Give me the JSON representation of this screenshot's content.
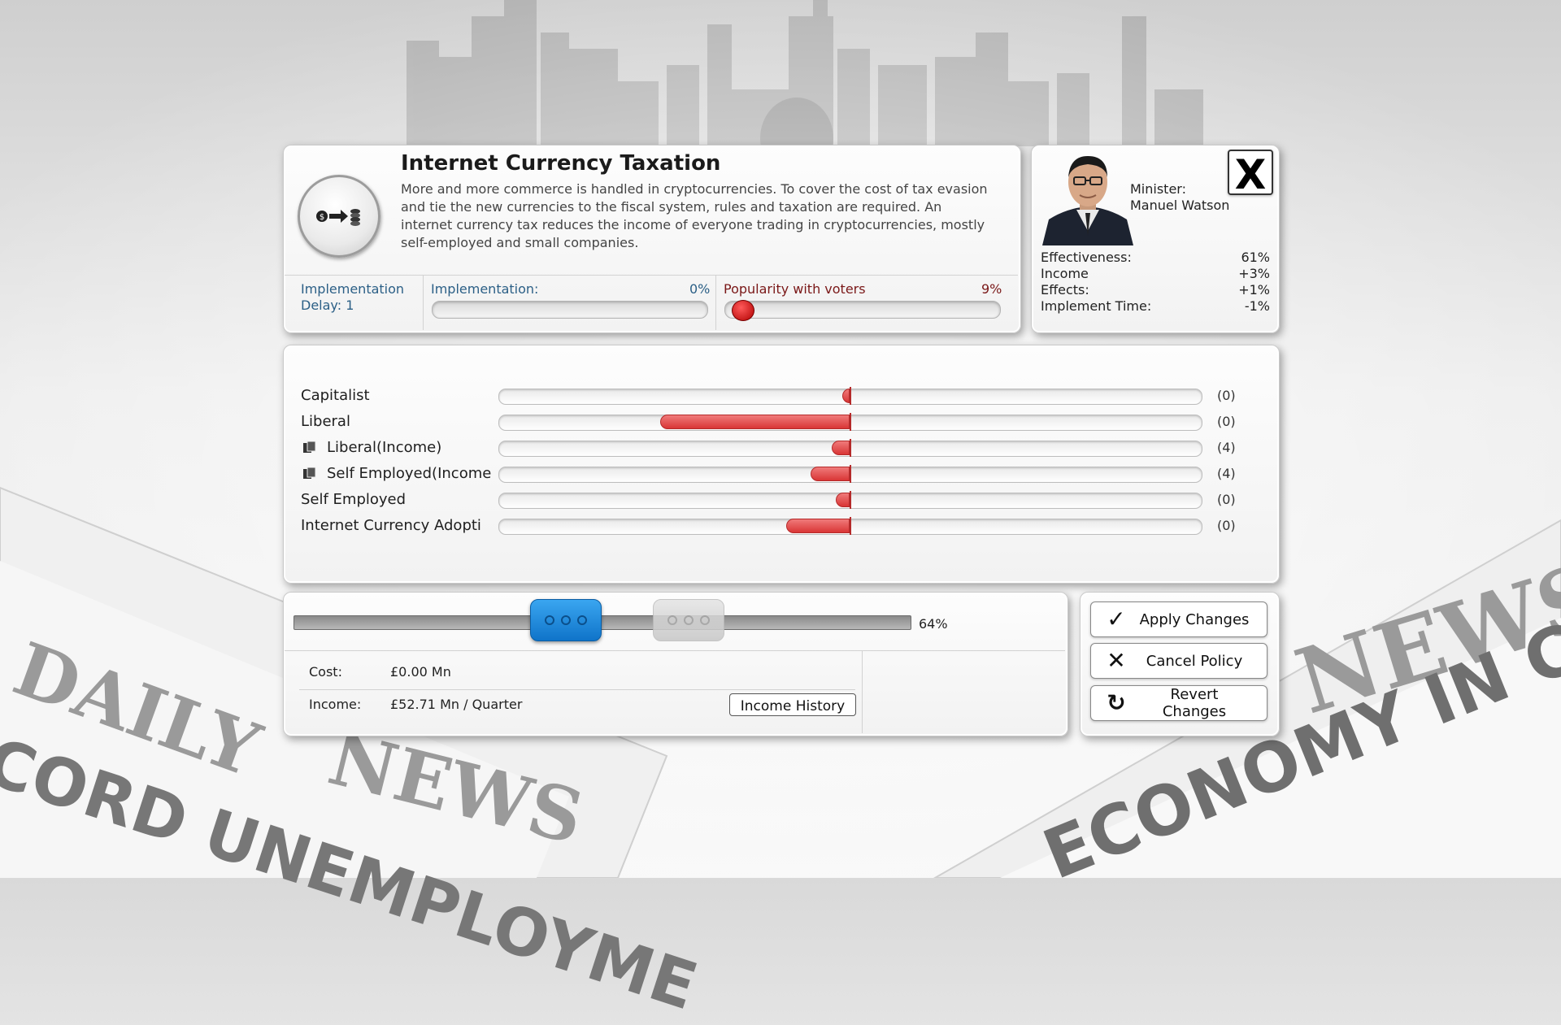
{
  "policy": {
    "title": "Internet Currency Taxation",
    "description": "More and more commerce is handled in cryptocurrencies. To cover the cost of tax evasion and tie the new currencies to the fiscal system, rules and taxation are required. An internet currency tax reduces the income of everyone trading in cryptocurrencies, mostly self-employed and small companies.",
    "icon": "cash-to-coins-icon"
  },
  "status": {
    "delay_label": "Implementation",
    "delay_value": "Delay: 1",
    "implementation_label": "Implementation:",
    "implementation_value": "0%",
    "implementation_fraction": 0.0,
    "popularity_label": "Popularity with voters",
    "popularity_value": "9%",
    "popularity_fraction": 0.09
  },
  "minister": {
    "role": "Minister:",
    "name": "Manuel Watson",
    "stats": [
      {
        "label": "Effectiveness:",
        "value": "61%"
      },
      {
        "label": "Income",
        "value": "+3%"
      },
      {
        "label": "Effects:",
        "value": "+1%"
      },
      {
        "label": "Implement Time:",
        "value": "-1%"
      }
    ],
    "close_label": "X"
  },
  "voter_groups": [
    {
      "label": "Capitalist",
      "value": "(0)",
      "effect": -0.02,
      "has_icon": false
    },
    {
      "label": "Liberal",
      "value": "(0)",
      "effect": -0.54,
      "has_icon": false
    },
    {
      "label": "Liberal(Income)",
      "value": "(4)",
      "effect": -0.05,
      "has_icon": true
    },
    {
      "label": "Self Employed(Income",
      "value": "(4)",
      "effect": -0.11,
      "has_icon": true
    },
    {
      "label": "Self Employed",
      "value": "(0)",
      "effect": -0.04,
      "has_icon": false
    },
    {
      "label": "Internet Currency Adopti",
      "value": "(0)",
      "effect": -0.18,
      "has_icon": false
    }
  ],
  "slider": {
    "value_label": "64%",
    "current_fraction": 0.44,
    "target_fraction": 0.64
  },
  "finance": {
    "cost_label": "Cost:",
    "cost_value": "£0.00 Mn",
    "income_label": "Income:",
    "income_value": "£52.71 Mn / Quarter",
    "history_button": "Income History"
  },
  "actions": {
    "apply": "Apply Changes",
    "cancel": "Cancel Policy",
    "revert": "Revert Changes"
  },
  "background": {
    "paper_left_title": "DAILY",
    "paper_left_headline": "CORD UNEMPLOYME",
    "paper_left_sub": "NEWS",
    "paper_right_title": "NEWS",
    "paper_right_headline": "ECONOMY IN CR"
  },
  "colors": {
    "accent_blue": "#1f8fe0",
    "bar_red": "#d93636",
    "label_blue": "#2b5f86"
  }
}
